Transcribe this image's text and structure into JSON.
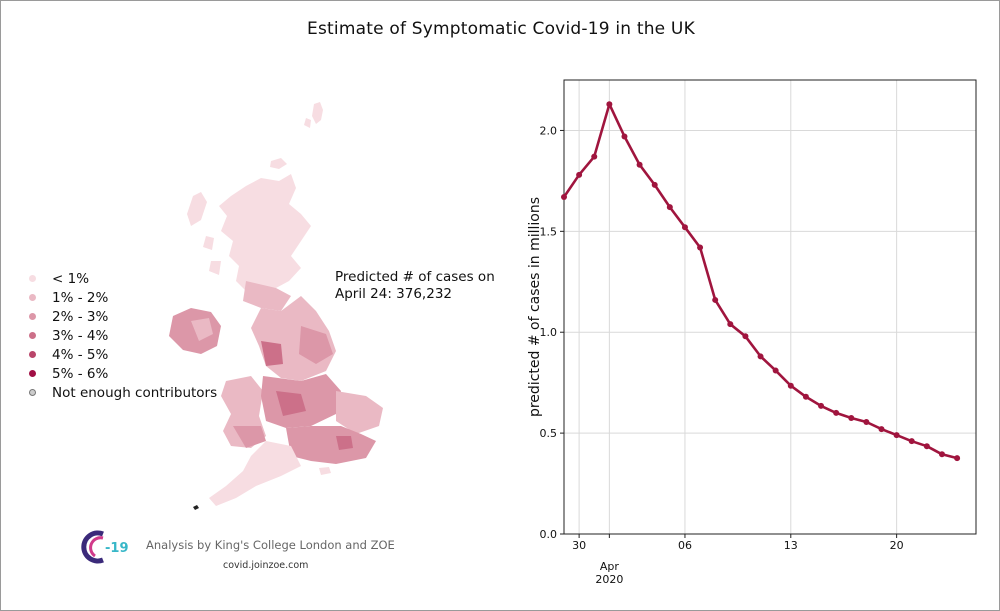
{
  "title": "Estimate of Symptomatic Covid-19 in the UK",
  "legend": [
    {
      "label": "< 1%",
      "color": "#f7dde2"
    },
    {
      "label": "1% - 2%",
      "color": "#eab9c4"
    },
    {
      "label": "2% - 3%",
      "color": "#dc97a8"
    },
    {
      "label": "3% - 4%",
      "color": "#cc7089"
    },
    {
      "label": "4% - 5%",
      "color": "#b9456a"
    },
    {
      "label": "5% - 6%",
      "color": "#a10f45"
    },
    {
      "label": "Not enough contributors",
      "color": "#cccccc"
    }
  ],
  "annotation": {
    "line1": "Predicted # of cases on",
    "line2": "April 24: 376,232"
  },
  "credit": {
    "logo_text": "-19",
    "text": "Analysis by King's College London and ZOE",
    "url": "covid.joinzoe.com"
  },
  "chart_data": {
    "type": "line",
    "title": "",
    "xlabel": "",
    "ylabel": "predicted # of cases in millions",
    "line_color": "#a0153e",
    "x": [
      "2020-03-29",
      "2020-03-30",
      "2020-03-31",
      "2020-04-01",
      "2020-04-02",
      "2020-04-03",
      "2020-04-04",
      "2020-04-05",
      "2020-04-06",
      "2020-04-07",
      "2020-04-08",
      "2020-04-09",
      "2020-04-10",
      "2020-04-11",
      "2020-04-12",
      "2020-04-13",
      "2020-04-14",
      "2020-04-15",
      "2020-04-16",
      "2020-04-17",
      "2020-04-18",
      "2020-04-19",
      "2020-04-20",
      "2020-04-21",
      "2020-04-22",
      "2020-04-23",
      "2020-04-24"
    ],
    "y": [
      1.67,
      1.78,
      1.87,
      2.13,
      1.97,
      1.83,
      1.73,
      1.62,
      1.52,
      1.42,
      1.16,
      1.04,
      0.98,
      0.88,
      0.81,
      0.735,
      0.68,
      0.635,
      0.6,
      0.575,
      0.555,
      0.52,
      0.49,
      0.46,
      0.435,
      0.395,
      0.376
    ],
    "ylim": [
      0.0,
      2.25
    ],
    "yticks": [
      "0.0",
      "0.5",
      "1.0",
      "1.5",
      "2.0"
    ],
    "xticks": [
      {
        "date": "2020-03-30",
        "label": "30"
      },
      {
        "date": "2020-04-01",
        "label": "Apr",
        "sublabel": "2020"
      },
      {
        "date": "2020-04-06",
        "label": "06"
      },
      {
        "date": "2020-04-13",
        "label": "13"
      },
      {
        "date": "2020-04-20",
        "label": "20"
      }
    ],
    "grid": true
  }
}
